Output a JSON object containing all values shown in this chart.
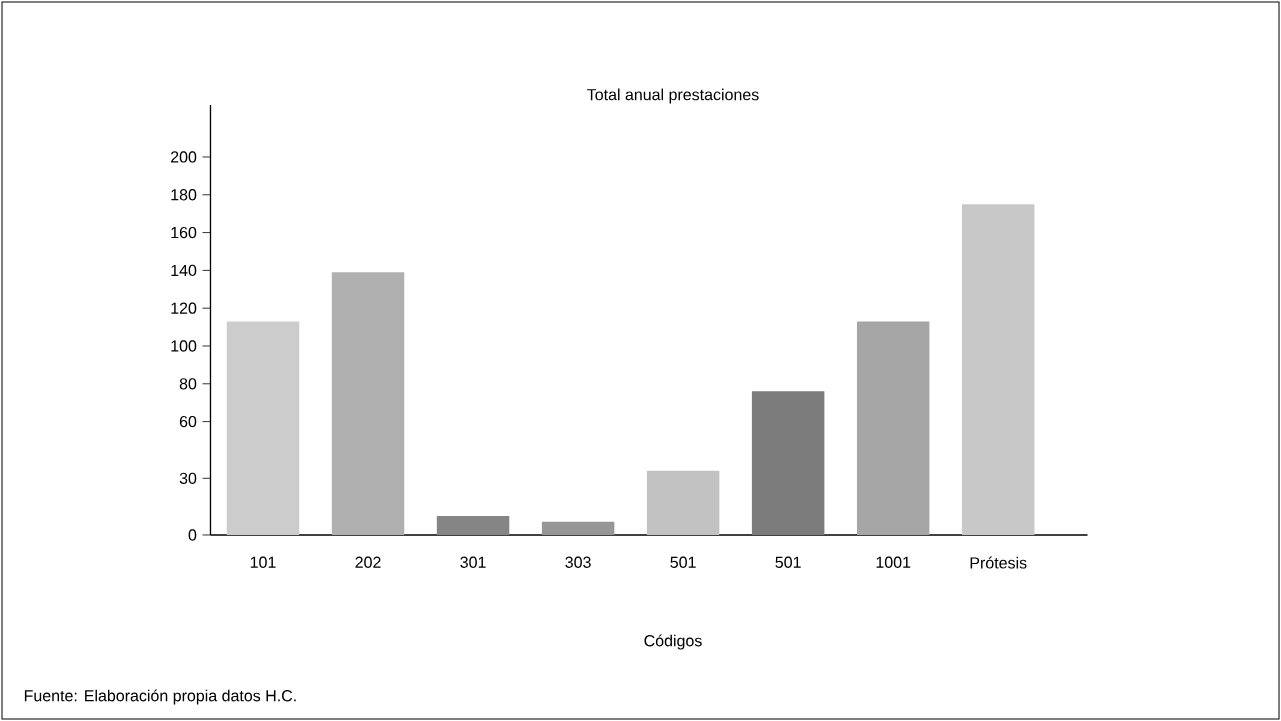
{
  "chart_data": {
    "type": "bar",
    "title": "Total anual prestaciones",
    "xlabel": "Códigos",
    "categories": [
      "101",
      "202",
      "301",
      "303",
      "501",
      "501",
      "1001",
      "Prótesis"
    ],
    "values": [
      113,
      139,
      10,
      7,
      34,
      76,
      113,
      175
    ],
    "colors": [
      "#cccccc",
      "#b0b0b0",
      "#858585",
      "#969696",
      "#c2c2c2",
      "#7b7b7b",
      "#a6a6a6",
      "#c8c8c8"
    ],
    "ylim": [
      0,
      227.5
    ],
    "yticks": [
      0,
      30,
      60,
      80,
      100,
      120,
      140,
      160,
      180,
      200
    ],
    "annotations": [
      "Fuente: Elaboración propia datos H.C."
    ]
  }
}
